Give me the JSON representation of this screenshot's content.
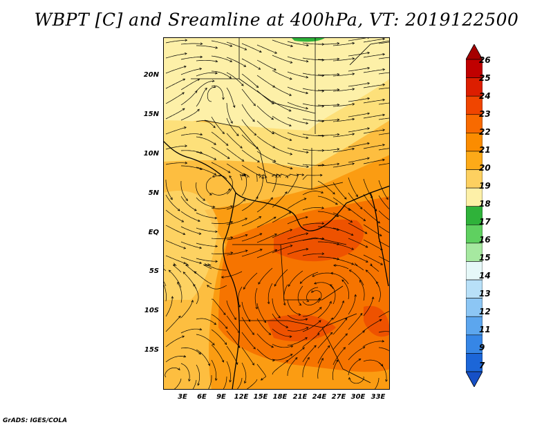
{
  "title": "WBPT [C] and Sreamline at 400hPa, VT: 2019122500",
  "footer": "GrADS: IGES/COLA",
  "lat_labels": [
    "20N",
    "15N",
    "10N",
    "5N",
    "EQ",
    "5S",
    "10S",
    "15S"
  ],
  "lon_labels": [
    "3E",
    "6E",
    "9E",
    "12E",
    "15E",
    "18E",
    "21E",
    "24E",
    "27E",
    "30E",
    "33E"
  ],
  "colorbar": {
    "labels": [
      "26",
      "25",
      "24",
      "23",
      "22",
      "21",
      "20",
      "19",
      "18",
      "17",
      "16",
      "15",
      "14",
      "13",
      "12",
      "11",
      "9",
      "7"
    ],
    "colors": [
      "#a50000",
      "#c00000",
      "#dc1e00",
      "#f04500",
      "#f86a00",
      "#fb8c00",
      "#fdaa18",
      "#fdd060",
      "#fdf0a8",
      "#2fb23a",
      "#5fd060",
      "#a6e8a0",
      "#e6f8f8",
      "#b8e0f8",
      "#8cc6f4",
      "#5ca6ee",
      "#3686e6",
      "#1c66d8",
      "#1650c6"
    ]
  },
  "map_colors": {
    "c19": "#fdf0a8",
    "c20": "#fde07a",
    "c21": "#fdbe40",
    "c22": "#fb9c12",
    "c23": "#f67400",
    "c24": "#ee5200",
    "c18": "#2fb23a"
  }
}
